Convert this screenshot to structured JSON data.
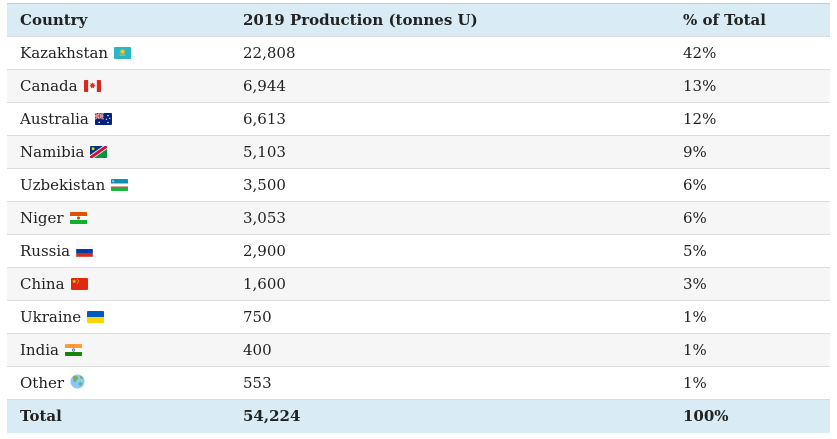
{
  "table": {
    "columns": [
      "Country",
      "2019 Production (tonnes U)",
      "% of Total"
    ],
    "rows": [
      {
        "country": "Kazakhstan",
        "flag": "kazakhstan",
        "production": "22,808",
        "percent": "42%"
      },
      {
        "country": "Canada",
        "flag": "canada",
        "production": "6,944",
        "percent": "13%"
      },
      {
        "country": "Australia",
        "flag": "australia",
        "production": "6,613",
        "percent": "12%"
      },
      {
        "country": "Namibia",
        "flag": "namibia",
        "production": "5,103",
        "percent": "9%"
      },
      {
        "country": "Uzbekistan",
        "flag": "uzbekistan",
        "production": "3,500",
        "percent": "6%"
      },
      {
        "country": "Niger",
        "flag": "niger",
        "production": "3,053",
        "percent": "6%"
      },
      {
        "country": "Russia",
        "flag": "russia",
        "production": "2,900",
        "percent": "5%"
      },
      {
        "country": "China",
        "flag": "china",
        "production": "1,600",
        "percent": "3%"
      },
      {
        "country": "Ukraine",
        "flag": "ukraine",
        "production": "750",
        "percent": "1%"
      },
      {
        "country": "India",
        "flag": "india",
        "production": "400",
        "percent": "1%"
      },
      {
        "country": "Other",
        "flag": "globe",
        "production": "553",
        "percent": "1%"
      }
    ],
    "total": {
      "label": "Total",
      "production": "54,224",
      "percent": "100%"
    }
  },
  "colors": {
    "header_bg": "#d9ecf5",
    "stripe_bg": "#f6f6f6",
    "row_border": "#dcdcdc",
    "top_border": "#c9c9c9",
    "text": "#222222"
  }
}
